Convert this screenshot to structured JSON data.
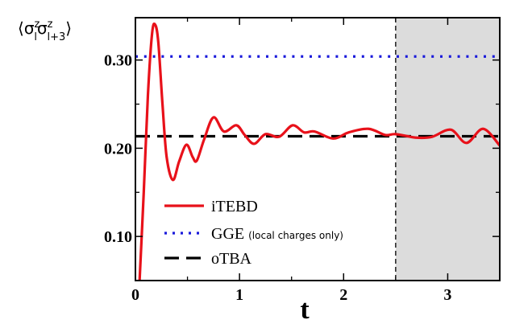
{
  "chart_data": {
    "type": "line",
    "title": "",
    "xlabel": "t",
    "ylabel": {
      "open": "⟨",
      "sym1": "σ",
      "sup1": "z",
      "sub1": "l",
      "sym2": "σ",
      "sup2": "z",
      "sub2": "l+3",
      "close": "⟩"
    },
    "xlim": [
      0,
      3.5
    ],
    "ylim": [
      0.05,
      0.348
    ],
    "xticks": [
      {
        "v": 0,
        "label": "0"
      },
      {
        "v": 1,
        "label": "1"
      },
      {
        "v": 2,
        "label": "2"
      },
      {
        "v": 3,
        "label": "3"
      }
    ],
    "xminor": [
      0.5,
      1.5,
      2.5
    ],
    "yticks": [
      {
        "v": 0.1,
        "label": "0.10"
      },
      {
        "v": 0.2,
        "label": "0.20"
      },
      {
        "v": 0.3,
        "label": "0.30"
      }
    ],
    "yminor": [
      0.15,
      0.25
    ],
    "shaded_region": {
      "from": 2.5,
      "to": 3.5,
      "color": "#dcdcdc"
    },
    "vertical_line": 2.5,
    "series": [
      {
        "name": "iTEBD",
        "style": "solid",
        "color": "#e8111a",
        "points": [
          [
            0.04,
            0.05
          ],
          [
            0.08,
            0.15
          ],
          [
            0.12,
            0.26
          ],
          [
            0.16,
            0.33
          ],
          [
            0.19,
            0.34
          ],
          [
            0.22,
            0.32
          ],
          [
            0.26,
            0.25
          ],
          [
            0.3,
            0.19
          ],
          [
            0.36,
            0.164
          ],
          [
            0.42,
            0.185
          ],
          [
            0.49,
            0.204
          ],
          [
            0.55,
            0.19
          ],
          [
            0.59,
            0.186
          ],
          [
            0.66,
            0.21
          ],
          [
            0.75,
            0.235
          ],
          [
            0.85,
            0.219
          ],
          [
            0.97,
            0.226
          ],
          [
            1.05,
            0.215
          ],
          [
            1.14,
            0.205
          ],
          [
            1.25,
            0.216
          ],
          [
            1.38,
            0.213
          ],
          [
            1.51,
            0.226
          ],
          [
            1.62,
            0.218
          ],
          [
            1.72,
            0.219
          ],
          [
            1.9,
            0.211
          ],
          [
            2.05,
            0.218
          ],
          [
            2.24,
            0.222
          ],
          [
            2.4,
            0.215
          ],
          [
            2.5,
            0.216
          ],
          [
            2.7,
            0.212
          ],
          [
            2.85,
            0.213
          ],
          [
            3.03,
            0.221
          ],
          [
            3.18,
            0.206
          ],
          [
            3.34,
            0.222
          ],
          [
            3.5,
            0.203
          ]
        ]
      },
      {
        "name": "GGE",
        "note": "(local charges only)",
        "style": "dotted",
        "color": "#1a1adb",
        "value": 0.304
      },
      {
        "name": "oTBA",
        "style": "dashed",
        "color": "#000000",
        "value": 0.2136
      }
    ],
    "legend_position": "bottom-left"
  }
}
